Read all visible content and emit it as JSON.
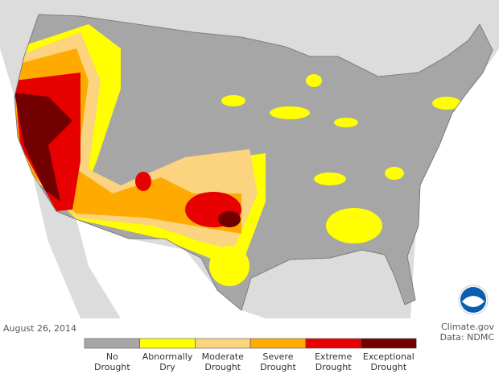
{
  "date": "August 26, 2014",
  "credit": [
    "Climate.gov",
    "Data: NDMC"
  ],
  "legend": [
    {
      "lines": [
        "No",
        "Drought"
      ],
      "color": "#a6a6a6"
    },
    {
      "lines": [
        "Abnormally",
        "Dry"
      ],
      "color": "#ffff00"
    },
    {
      "lines": [
        "Moderate",
        "Drought"
      ],
      "color": "#fcd37f"
    },
    {
      "lines": [
        "Severe",
        "Drought"
      ],
      "color": "#ffaa00"
    },
    {
      "lines": [
        "Extreme",
        "Drought"
      ],
      "color": "#e60000"
    },
    {
      "lines": [
        "Exceptional",
        "Drought"
      ],
      "color": "#730000"
    }
  ]
}
